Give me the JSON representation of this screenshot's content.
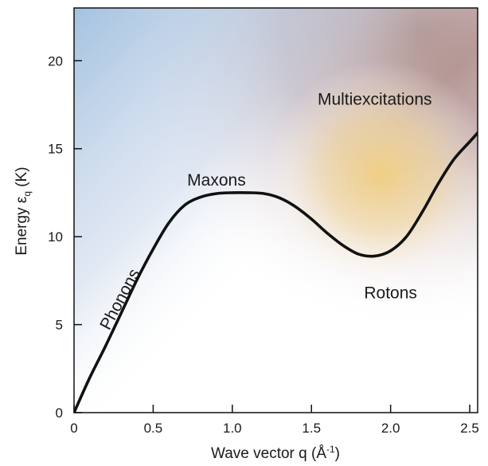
{
  "chart_data": {
    "type": "line",
    "xlabel": {
      "main": "Wave vector  q (Å",
      "sup": "-1",
      "close": ")"
    },
    "ylabel": {
      "main": "Energy  ε",
      "sub": "q",
      "tail": " (K)"
    },
    "xlim": [
      0,
      2.55
    ],
    "ylim": [
      0,
      23
    ],
    "xticks": [
      {
        "value": 0,
        "label": "0"
      },
      {
        "value": 0.5,
        "label": "0.5"
      },
      {
        "value": 1.0,
        "label": "1.0"
      },
      {
        "value": 1.5,
        "label": "1.5"
      },
      {
        "value": 2.0,
        "label": "2.0"
      },
      {
        "value": 2.5,
        "label": "2.5"
      }
    ],
    "yticks": [
      {
        "value": 0,
        "label": "0"
      },
      {
        "value": 5,
        "label": "5"
      },
      {
        "value": 10,
        "label": "10"
      },
      {
        "value": 15,
        "label": "15"
      },
      {
        "value": 20,
        "label": "20"
      }
    ],
    "grid": false,
    "series": [
      {
        "color": "#111111",
        "x": [
          0,
          0.1,
          0.2,
          0.3,
          0.4,
          0.5,
          0.6,
          0.7,
          0.8,
          0.9,
          1.0,
          1.1,
          1.2,
          1.3,
          1.4,
          1.5,
          1.6,
          1.7,
          1.8,
          1.9,
          2.0,
          2.1,
          2.2,
          2.3,
          2.4,
          2.5,
          2.55
        ],
        "y": [
          0,
          2.0,
          3.8,
          5.7,
          7.6,
          9.3,
          10.8,
          11.8,
          12.25,
          12.45,
          12.5,
          12.5,
          12.45,
          12.2,
          11.7,
          11.0,
          10.2,
          9.5,
          9.0,
          8.9,
          9.2,
          10.0,
          11.4,
          13.0,
          14.4,
          15.4,
          15.9
        ]
      }
    ],
    "annotations": [
      {
        "text": "Phonons",
        "x": 0.32,
        "y": 6.3,
        "rotate": -62
      },
      {
        "text": "Maxons",
        "x": 0.9,
        "y": 12.9
      },
      {
        "text": "Rotons",
        "x": 2.0,
        "y": 6.5
      },
      {
        "text": "Multiexcitations",
        "x": 1.9,
        "y": 17.5
      }
    ]
  }
}
